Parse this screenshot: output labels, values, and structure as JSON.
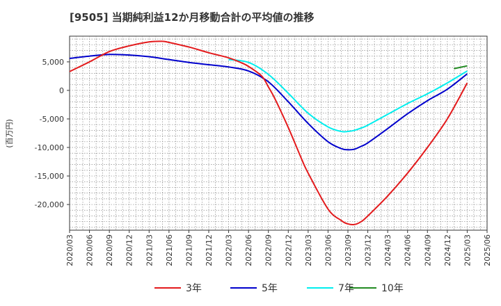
{
  "chart_data": {
    "type": "line",
    "title": "[9505]  当期純利益12か月移動合計の平均値の推移",
    "ylabel": "(百万円)",
    "xlabel": "",
    "ylim": [
      -24500,
      9500
    ],
    "yticks": [
      5000,
      0,
      -5000,
      -10000,
      -15000,
      -20000
    ],
    "ytick_labels": [
      "5,000",
      "0",
      "-5,000",
      "-10,000",
      "-15,000",
      "-20,000"
    ],
    "x_tick_labels": [
      "2020/03",
      "2020/06",
      "2020/09",
      "2020/12",
      "2021/03",
      "2021/06",
      "2021/09",
      "2021/12",
      "2022/03",
      "2022/06",
      "2022/09",
      "2022/12",
      "2023/03",
      "2023/06",
      "2023/09",
      "2023/12",
      "2024/03",
      "2024/06",
      "2024/09",
      "2024/12",
      "2025/03",
      "2025/06"
    ],
    "grid": true,
    "legend_position": "bottom",
    "series": [
      {
        "name": "3年",
        "color": "#e31a1c",
        "x": [
          "2020/03",
          "2020/06",
          "2020/09",
          "2020/12",
          "2021/03",
          "2021/05",
          "2021/06",
          "2021/09",
          "2021/12",
          "2022/03",
          "2022/05",
          "2022/06",
          "2022/08",
          "2022/09",
          "2022/10",
          "2022/12",
          "2023/02",
          "2023/03",
          "2023/06",
          "2023/08",
          "2023/09",
          "2023/10",
          "2023/11",
          "2023/12",
          "2024/03",
          "2024/06",
          "2024/09",
          "2024/12",
          "2025/03"
        ],
        "y": [
          3300,
          5000,
          6800,
          7800,
          8500,
          8600,
          8400,
          7600,
          6600,
          5700,
          4800,
          4200,
          2500,
          600,
          -1500,
          -6500,
          -12000,
          -14500,
          -20800,
          -22800,
          -23400,
          -23500,
          -23000,
          -22000,
          -18500,
          -14500,
          -10000,
          -5000,
          1300
        ]
      },
      {
        "name": "5年",
        "color": "#0000cc",
        "x": [
          "2020/03",
          "2020/06",
          "2020/09",
          "2020/12",
          "2021/03",
          "2021/06",
          "2021/09",
          "2021/12",
          "2022/03",
          "2022/06",
          "2022/09",
          "2022/12",
          "2023/03",
          "2023/06",
          "2023/08",
          "2023/09",
          "2023/10",
          "2023/11",
          "2023/12",
          "2024/03",
          "2024/06",
          "2024/09",
          "2024/12",
          "2025/03"
        ],
        "y": [
          5600,
          6000,
          6300,
          6200,
          5900,
          5400,
          4900,
          4500,
          4100,
          3400,
          1500,
          -2000,
          -5800,
          -9000,
          -10200,
          -10400,
          -10300,
          -9800,
          -9200,
          -6700,
          -4100,
          -1800,
          200,
          2900
        ]
      },
      {
        "name": "7年",
        "color": "#00eeee",
        "x": [
          "2022/03",
          "2022/06",
          "2022/09",
          "2022/12",
          "2023/03",
          "2023/06",
          "2023/08",
          "2023/09",
          "2023/10",
          "2023/11",
          "2023/12",
          "2024/03",
          "2024/06",
          "2024/09",
          "2024/12",
          "2025/03"
        ],
        "y": [
          5400,
          4900,
          2800,
          -500,
          -4000,
          -6400,
          -7200,
          -7200,
          -7000,
          -6600,
          -6100,
          -4200,
          -2300,
          -600,
          1300,
          3400
        ]
      },
      {
        "name": "10年",
        "color": "#228b22",
        "x": [
          "2025/01",
          "2025/03"
        ],
        "y": [
          3800,
          4300
        ]
      }
    ]
  }
}
